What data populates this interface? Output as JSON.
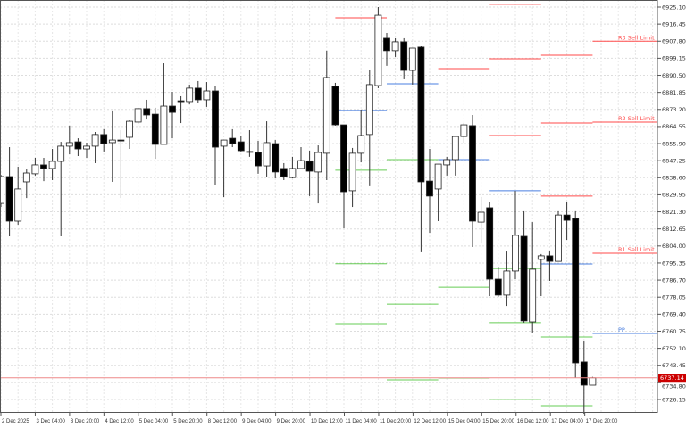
{
  "chart_data": {
    "type": "candlestick",
    "ylim": [
      6717.0,
      6928.7
    ],
    "grid": true,
    "y_ticks": [
      "6925.10",
      "6916.45",
      "6907.80",
      "6899.15",
      "6890.50",
      "6881.85",
      "6873.20",
      "6864.55",
      "6855.90",
      "6847.25",
      "6838.60",
      "6829.95",
      "6821.30",
      "6812.65",
      "6804.00",
      "6795.35",
      "6786.70",
      "6778.05",
      "6769.40",
      "6760.75",
      "6752.10",
      "6743.45",
      "6734.80",
      "6726.15"
    ],
    "x_ticks": [
      "2 Dec 2025",
      "3 Dec 04:00",
      "3 Dec 20:00",
      "4 Dec 12:00",
      "5 Dec 04:00",
      "5 Dec 20:00",
      "8 Dec 12:00",
      "9 Dec 04:00",
      "9 Dec 20:00",
      "10 Dec 12:00",
      "11 Dec 04:00",
      "11 Dec 20:00",
      "12 Dec 12:00",
      "15 Dec 04:00",
      "15 Dec 20:00",
      "16 Dec 12:00",
      "17 Dec 04:00",
      "17 Dec 20:00"
    ],
    "current_price": "6737.14",
    "current_price_color": "#cc0000",
    "bull_color": "#ffffff",
    "bear_color": "#000000",
    "candles_ohlc": [
      [
        6825.6,
        6840.1,
        6823.8,
        6839.2
      ],
      [
        6839.2,
        6854.1,
        6808.9,
        6816.6
      ],
      [
        6816.6,
        6844.2,
        6814.8,
        6832.9
      ],
      [
        6836.5,
        6842.8,
        6828.3,
        6841.0
      ],
      [
        6840.6,
        6848.7,
        6839.7,
        6845.1
      ],
      [
        6845.1,
        6848.7,
        6836.9,
        6843.3
      ],
      [
        6843.3,
        6853.2,
        6837.4,
        6846.9
      ],
      [
        6846.9,
        6856.8,
        6808.9,
        6854.6
      ],
      [
        6854.6,
        6865.0,
        6850.5,
        6856.4
      ],
      [
        6856.8,
        6858.6,
        6849.6,
        6853.2
      ],
      [
        6853.2,
        6856.4,
        6848.7,
        6854.6
      ],
      [
        6854.6,
        6861.8,
        6846.0,
        6860.5
      ],
      [
        6860.5,
        6863.2,
        6851.9,
        6855.9
      ],
      [
        6856.4,
        6872.7,
        6836.5,
        6857.7
      ],
      [
        6857.7,
        6862.7,
        6828.3,
        6857.6
      ],
      [
        6859.1,
        6867.7,
        6853.2,
        6867.2
      ],
      [
        6866.8,
        6874.0,
        6865.9,
        6873.6
      ],
      [
        6873.6,
        6878.1,
        6868.1,
        6870.4
      ],
      [
        6870.8,
        6874.0,
        6848.2,
        6855.5
      ],
      [
        6855.5,
        6896.6,
        6855.5,
        6874.9
      ],
      [
        6874.9,
        6882.1,
        6858.6,
        6871.7
      ],
      [
        6877.6,
        6879.9,
        6866.3,
        6877.2
      ],
      [
        6877.2,
        6885.8,
        6875.8,
        6884.0
      ],
      [
        6884.0,
        6887.6,
        6876.7,
        6878.1
      ],
      [
        6878.1,
        6887.1,
        6874.5,
        6882.6
      ],
      [
        6882.6,
        6885.3,
        6835.1,
        6854.1
      ],
      [
        6854.6,
        6857.7,
        6828.8,
        6857.7
      ],
      [
        6858.6,
        6863.2,
        6854.1,
        6855.9
      ],
      [
        6856.8,
        6859.6,
        6851.9,
        6852.3
      ],
      [
        6851.9,
        6862.7,
        6849.2,
        6851.6
      ],
      [
        6851.4,
        6857.3,
        6840.6,
        6844.6
      ],
      [
        6844.6,
        6867.2,
        6839.2,
        6856.4
      ],
      [
        6855.9,
        6857.7,
        6838.3,
        6841.5
      ],
      [
        6843.3,
        6846.0,
        6837.4,
        6839.2
      ],
      [
        6838.7,
        6849.2,
        6838.3,
        6843.3
      ],
      [
        6843.3,
        6854.1,
        6843.3,
        6847.3
      ],
      [
        6846.9,
        6852.3,
        6829.3,
        6841.9
      ],
      [
        6841.5,
        6855.0,
        6825.6,
        6851.4
      ],
      [
        6851.0,
        6903.0,
        6837.4,
        6889.4
      ],
      [
        6884.9,
        6886.7,
        6865.0,
        6865.4
      ],
      [
        6865.4,
        6865.4,
        6813.0,
        6831.5
      ],
      [
        6832.0,
        6853.7,
        6823.8,
        6851.0
      ],
      [
        6851.0,
        6873.1,
        6846.4,
        6860.0
      ],
      [
        6860.5,
        6893.0,
        6834.3,
        6885.8
      ],
      [
        6885.3,
        6925.1,
        6884.0,
        6921.0
      ],
      [
        6909.3,
        6912.0,
        6895.3,
        6903.0
      ],
      [
        6903.0,
        6909.3,
        6899.8,
        6907.5
      ],
      [
        6907.5,
        6909.3,
        6888.5,
        6893.0
      ],
      [
        6893.0,
        6904.3,
        6885.8,
        6904.3
      ],
      [
        6904.8,
        6905.2,
        6800.8,
        6836.5
      ],
      [
        6836.9,
        6853.2,
        6810.7,
        6829.3
      ],
      [
        6832.9,
        6845.5,
        6816.6,
        6845.5
      ],
      [
        6845.1,
        6849.2,
        6839.7,
        6847.8
      ],
      [
        6847.8,
        6860.0,
        6839.7,
        6859.5
      ],
      [
        6859.5,
        6866.3,
        6856.4,
        6865.4
      ],
      [
        6865.0,
        6870.4,
        6803.5,
        6816.6
      ],
      [
        6816.1,
        6828.8,
        6805.7,
        6821.1
      ],
      [
        6823.4,
        6826.1,
        6778.6,
        6787.2
      ],
      [
        6787.2,
        6793.5,
        6778.2,
        6779.1
      ],
      [
        6779.1,
        6801.2,
        6773.6,
        6791.3
      ],
      [
        6791.3,
        6831.9,
        6787.2,
        6809.4
      ],
      [
        6808.9,
        6821.6,
        6765.1,
        6766.0
      ],
      [
        6765.5,
        6816.1,
        6760.1,
        6792.2
      ],
      [
        6797.2,
        6799.9,
        6778.6,
        6799.0
      ],
      [
        6799.0,
        6801.2,
        6786.3,
        6796.2
      ],
      [
        6796.2,
        6821.6,
        6796.2,
        6819.7
      ],
      [
        6819.7,
        6826.1,
        6807.1,
        6817.0
      ],
      [
        6817.9,
        6821.6,
        6737.0,
        6744.7
      ],
      [
        6745.2,
        6756.0,
        6718.9,
        6733.4
      ],
      [
        6733.4,
        6737.6,
        6733.4,
        6737.14
      ]
    ],
    "pivot_colors": {
      "resistance": "#ff4a4a",
      "pivot": "#4a7fe0",
      "support": "#66cc55"
    },
    "pivot_days": [
      {
        "R": [
          6919.7
        ],
        "P": 6872.7,
        "S": [
          6842.4,
          6795.0,
          6764.6
        ]
      },
      {
        "R": [],
        "P": 6886.2,
        "S": [
          6847.8,
          6774.5,
          6736.1
        ]
      },
      {
        "R": [
          6893.9
        ],
        "P": 6847.8,
        "S": [
          6783.1,
          6737.0
        ]
      },
      {
        "R": [
          6926.5,
          6898.9,
          6860.0
        ],
        "P": 6832.0,
        "S": [
          6792.6,
          6765.1,
          6726.2
        ]
      },
      {
        "R": [
          6900.7,
          6866.3,
          6829.3
        ],
        "P": 6794.9,
        "S": [
          6757.8,
          6723.0
        ]
      }
    ],
    "current_levels": [
      {
        "label": "R3 Sell Limit",
        "price": 6907.8,
        "kind": "resistance"
      },
      {
        "label": "R2 Sell Limit",
        "price": 6866.8,
        "kind": "resistance"
      },
      {
        "label": "R1 Sell Limit",
        "price": 6800.3,
        "kind": "resistance"
      },
      {
        "label": "PP",
        "price": 6759.6,
        "kind": "pivot"
      }
    ]
  }
}
